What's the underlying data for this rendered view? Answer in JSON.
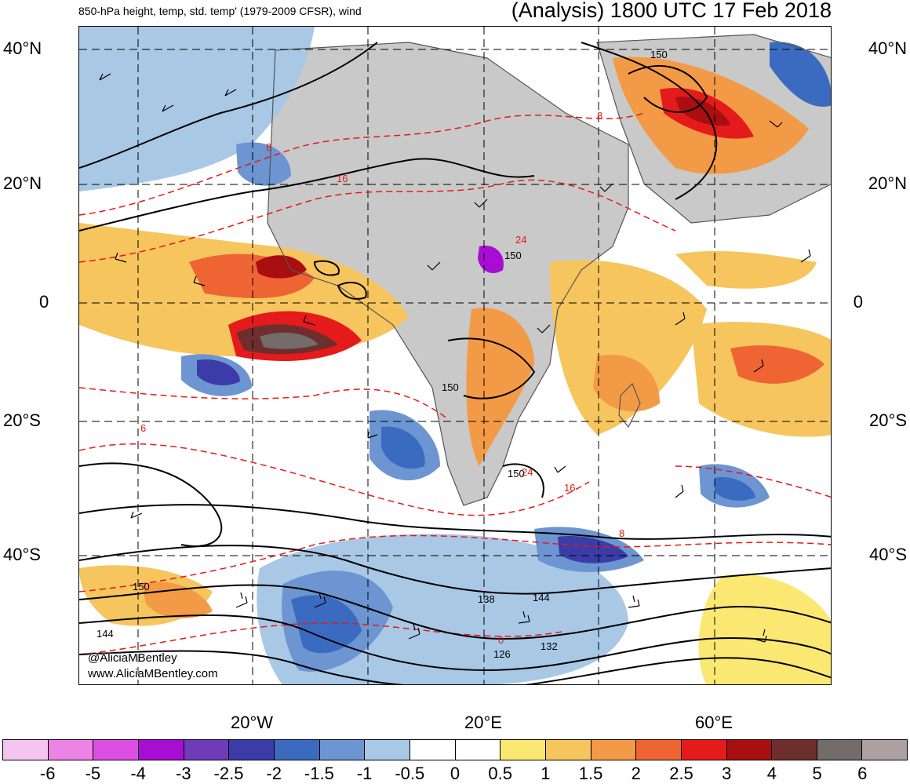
{
  "header": {
    "left_title": "850-hPa height, temp, std. temp' (1979-2009 CFSR), wind",
    "right_title": "(Analysis) 1800 UTC 17 Feb 2018"
  },
  "axes": {
    "lat_labels": [
      "40°N",
      "20°N",
      "0",
      "20°S",
      "40°S"
    ],
    "lon_labels": [
      "20°W",
      "20°E",
      "60°E"
    ]
  },
  "contour_labels": {
    "height": [
      "150",
      "150",
      "150",
      "150",
      "150",
      "138",
      "144",
      "132",
      "126",
      "144"
    ],
    "temp": [
      "8",
      "16",
      "24",
      "6",
      "24",
      "16",
      "8",
      "8",
      "0"
    ]
  },
  "credits": {
    "handle": "@AliciaMBentley",
    "website": "www.AliciaMBentley.com"
  },
  "colorbar": {
    "colors": [
      "#f3c5ef",
      "#ec84e6",
      "#dd4fe3",
      "#a80dd3",
      "#6e3cb6",
      "#3c3ca9",
      "#3b6bc1",
      "#6c95d1",
      "#a8c8e6",
      "#ffffff",
      "#ffffff",
      "#fbe872",
      "#f6c55e",
      "#f39a46",
      "#ee6433",
      "#e51a1b",
      "#a90f10",
      "#6e2e2e",
      "#746b6b",
      "#aca0a0"
    ],
    "labels": [
      "-6",
      "-5",
      "-4",
      "-3",
      "-2.5",
      "-2",
      "-1.5",
      "-1",
      "-0.5",
      "0",
      "0.5",
      "1",
      "1.5",
      "2",
      "2.5",
      "3",
      "4",
      "5",
      "6"
    ]
  }
}
